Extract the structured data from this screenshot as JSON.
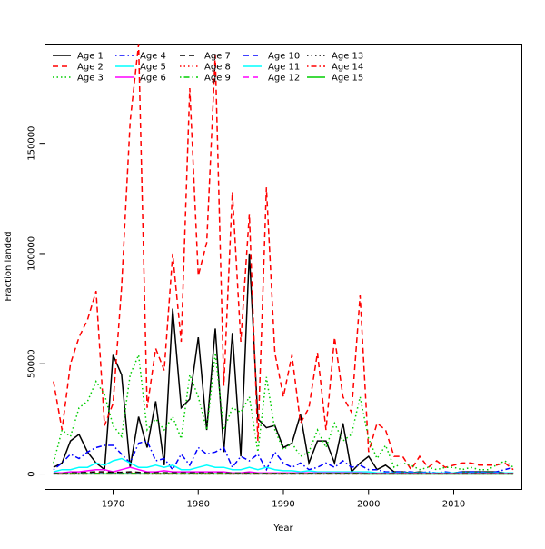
{
  "chart_data": {
    "type": "line",
    "title": "",
    "xlabel": "Year",
    "ylabel": "Fraction landed",
    "xlim": [
      1962,
      2018
    ],
    "ylim": [
      -7000,
      195000
    ],
    "x_ticks": [
      1970,
      1980,
      1990,
      2000,
      2010
    ],
    "y_ticks": [
      0,
      50000,
      100000,
      150000
    ],
    "legend_placement": "top-left",
    "grid": false,
    "x": [
      1963,
      1964,
      1965,
      1966,
      1967,
      1968,
      1969,
      1970,
      1971,
      1972,
      1973,
      1974,
      1975,
      1976,
      1977,
      1978,
      1979,
      1980,
      1981,
      1982,
      1983,
      1984,
      1985,
      1986,
      1987,
      1988,
      1989,
      1990,
      1991,
      1992,
      1993,
      1994,
      1995,
      1996,
      1997,
      1998,
      1999,
      2000,
      2001,
      2002,
      2003,
      2004,
      2005,
      2006,
      2007,
      2008,
      2009,
      2010,
      2011,
      2012,
      2013,
      2014,
      2015,
      2016,
      2017
    ],
    "series": [
      {
        "name": "Age 1",
        "color": "#000000",
        "dash": "solid",
        "values": [
          3000,
          5000,
          15000,
          18000,
          10000,
          5000,
          2000,
          54000,
          45000,
          3000,
          26000,
          12000,
          33000,
          4000,
          75000,
          30000,
          34000,
          62000,
          20000,
          66000,
          10000,
          64000,
          8000,
          100000,
          25000,
          21000,
          22000,
          12000,
          14000,
          27000,
          5000,
          15000,
          15000,
          5000,
          23000,
          1000,
          5000,
          8000,
          2000,
          4000,
          1000,
          1000,
          500,
          1000,
          500,
          500,
          500,
          500,
          1000,
          1000,
          1000,
          1000,
          1000,
          500,
          500
        ]
      },
      {
        "name": "Age 2",
        "color": "#ff0000",
        "dash": "dashed",
        "values": [
          42000,
          20000,
          50000,
          62000,
          70000,
          83000,
          22000,
          32000,
          85000,
          160000,
          195000,
          30000,
          57000,
          47000,
          100000,
          60000,
          175000,
          90000,
          105000,
          190000,
          40000,
          128000,
          60000,
          118000,
          15000,
          130000,
          55000,
          35000,
          54000,
          23000,
          30000,
          55000,
          20000,
          62000,
          35000,
          28000,
          81000,
          10000,
          23000,
          20000,
          8000,
          8000,
          2000,
          8000,
          3000,
          6000,
          3000,
          4000,
          5000,
          5000,
          4000,
          4000,
          4000,
          5000,
          2000
        ]
      },
      {
        "name": "Age 3",
        "color": "#00cd00",
        "dash": "dotted",
        "values": [
          5000,
          20000,
          17000,
          30000,
          33000,
          42000,
          36000,
          22000,
          17000,
          45000,
          54000,
          20000,
          25000,
          20000,
          26000,
          16000,
          45000,
          35000,
          20000,
          55000,
          20000,
          30000,
          28000,
          35000,
          10000,
          44000,
          20000,
          11000,
          14000,
          8000,
          10000,
          20000,
          12000,
          23000,
          15000,
          18000,
          35000,
          16000,
          7000,
          13000,
          3000,
          5000,
          4000,
          2000,
          3000,
          2000,
          3000,
          3000,
          2000,
          3000,
          2000,
          2000,
          4000,
          6000,
          3000
        ]
      },
      {
        "name": "Age 4",
        "color": "#0000ff",
        "dash": "dashdot",
        "values": [
          2000,
          5000,
          9000,
          7000,
          10000,
          12000,
          13000,
          13000,
          9000,
          5000,
          14000,
          15000,
          6000,
          7000,
          2000,
          9000,
          4000,
          12000,
          9000,
          10000,
          12000,
          3000,
          8000,
          6000,
          9000,
          2000,
          10000,
          5000,
          3000,
          5000,
          2000,
          3000,
          5000,
          3000,
          6000,
          3000,
          4000,
          2000,
          2000,
          1000,
          1000,
          1000,
          1000,
          500,
          1000,
          500,
          1000,
          500,
          1000,
          1000,
          1000,
          500,
          1000,
          2000,
          3000
        ]
      },
      {
        "name": "Age 5",
        "color": "#00ffff",
        "dash": "solid",
        "values": [
          1000,
          2000,
          2000,
          3000,
          3000,
          5000,
          4000,
          6000,
          7000,
          5000,
          3000,
          3000,
          4000,
          3000,
          4000,
          2000,
          2000,
          3000,
          4000,
          3000,
          3000,
          2000,
          2000,
          3000,
          2000,
          3000,
          2000,
          1500,
          1500,
          1000,
          1500,
          1000,
          1000,
          1000,
          1000,
          1000,
          1000,
          1000,
          500,
          500,
          500,
          500,
          500,
          500,
          500,
          500,
          500,
          500,
          500,
          500,
          500,
          500,
          500,
          500,
          500
        ]
      },
      {
        "name": "Age 6",
        "color": "#ff00ff",
        "dash": "solid",
        "values": [
          500,
          500,
          1000,
          1000,
          1500,
          2000,
          2000,
          1000,
          2000,
          3000,
          2000,
          1000,
          1000,
          1500,
          1000,
          1000,
          1000,
          1000,
          1000,
          1000,
          1000,
          500,
          500,
          1000,
          500,
          500,
          500,
          500,
          500,
          500,
          500,
          500,
          500,
          500,
          500,
          500,
          500,
          300,
          300,
          300,
          300,
          300,
          300,
          300,
          300,
          300,
          300,
          300,
          300,
          300,
          300,
          300,
          300,
          300,
          300
        ]
      },
      {
        "name": "Age 7",
        "color": "#000000",
        "dash": "dashed",
        "values": [
          300,
          300,
          500,
          500,
          800,
          1000,
          1000,
          800,
          800,
          1000,
          800,
          600,
          600,
          600,
          500,
          500,
          500,
          500,
          500,
          500,
          500,
          400,
          400,
          400,
          300,
          300,
          300,
          300,
          300,
          300,
          300,
          300,
          300,
          300,
          300,
          300,
          300,
          200,
          200,
          200,
          200,
          200,
          200,
          200,
          200,
          200,
          200,
          200,
          200,
          200,
          200,
          200,
          200,
          200,
          200
        ]
      },
      {
        "name": "Age 8",
        "color": "#ff0000",
        "dash": "dotted",
        "values": [
          200,
          200,
          300,
          300,
          400,
          500,
          500,
          400,
          400,
          500,
          400,
          300,
          300,
          300,
          300,
          300,
          300,
          300,
          300,
          300,
          300,
          200,
          200,
          200,
          200,
          200,
          200,
          200,
          200,
          200,
          200,
          200,
          200,
          200,
          200,
          200,
          200,
          100,
          100,
          100,
          100,
          100,
          100,
          100,
          100,
          100,
          100,
          100,
          100,
          100,
          100,
          100,
          100,
          100,
          100
        ]
      },
      {
        "name": "Age 9",
        "color": "#00cd00",
        "dash": "dashdot",
        "values": [
          150,
          150,
          200,
          200,
          300,
          300,
          300,
          300,
          300,
          300,
          300,
          200,
          200,
          200,
          200,
          200,
          200,
          200,
          200,
          200,
          200,
          150,
          150,
          150,
          150,
          150,
          150,
          150,
          150,
          150,
          150,
          150,
          150,
          150,
          150,
          150,
          150,
          100,
          100,
          100,
          100,
          100,
          100,
          100,
          100,
          100,
          100,
          100,
          100,
          100,
          100,
          100,
          100,
          100,
          100
        ]
      },
      {
        "name": "Age 10",
        "color": "#0000ff",
        "dash": "dashed",
        "values": [
          100,
          100,
          150,
          150,
          200,
          200,
          200,
          200,
          200,
          200,
          200,
          150,
          150,
          150,
          150,
          150,
          150,
          150,
          150,
          150,
          150,
          100,
          100,
          100,
          100,
          100,
          100,
          100,
          100,
          100,
          100,
          100,
          100,
          100,
          100,
          100,
          100,
          80,
          80,
          80,
          80,
          80,
          80,
          80,
          80,
          80,
          80,
          80,
          80,
          80,
          80,
          80,
          80,
          80,
          80
        ]
      },
      {
        "name": "Age 11",
        "color": "#00ffff",
        "dash": "solid",
        "values": [
          80,
          80,
          100,
          100,
          150,
          150,
          150,
          150,
          150,
          150,
          150,
          100,
          100,
          100,
          100,
          100,
          100,
          100,
          100,
          100,
          100,
          80,
          80,
          80,
          80,
          80,
          80,
          80,
          80,
          80,
          80,
          80,
          80,
          80,
          80,
          80,
          80,
          60,
          60,
          60,
          60,
          60,
          60,
          60,
          60,
          60,
          60,
          60,
          60,
          60,
          60,
          60,
          60,
          60,
          60
        ]
      },
      {
        "name": "Age 12",
        "color": "#ff00ff",
        "dash": "dashed",
        "values": [
          60,
          60,
          80,
          80,
          100,
          100,
          100,
          100,
          100,
          100,
          100,
          80,
          80,
          80,
          80,
          80,
          80,
          80,
          80,
          80,
          80,
          60,
          60,
          60,
          60,
          60,
          60,
          60,
          60,
          60,
          60,
          60,
          60,
          60,
          60,
          60,
          60,
          50,
          50,
          50,
          50,
          50,
          50,
          50,
          50,
          50,
          50,
          50,
          50,
          50,
          50,
          50,
          50,
          50,
          50
        ]
      },
      {
        "name": "Age 13",
        "color": "#000000",
        "dash": "dotted",
        "values": [
          50,
          50,
          60,
          60,
          80,
          80,
          80,
          80,
          80,
          80,
          80,
          60,
          60,
          60,
          60,
          60,
          60,
          60,
          60,
          60,
          60,
          50,
          50,
          50,
          50,
          50,
          50,
          50,
          50,
          50,
          50,
          50,
          50,
          50,
          50,
          50,
          50,
          40,
          40,
          40,
          40,
          40,
          40,
          40,
          40,
          40,
          40,
          40,
          40,
          40,
          40,
          40,
          40,
          40,
          40
        ]
      },
      {
        "name": "Age 14",
        "color": "#ff0000",
        "dash": "dashdot",
        "values": [
          40,
          40,
          50,
          50,
          60,
          60,
          60,
          60,
          60,
          60,
          60,
          50,
          50,
          50,
          50,
          50,
          50,
          50,
          50,
          50,
          50,
          40,
          40,
          40,
          40,
          40,
          40,
          40,
          40,
          40,
          40,
          40,
          40,
          40,
          40,
          40,
          40,
          30,
          30,
          30,
          30,
          30,
          30,
          30,
          30,
          30,
          30,
          30,
          30,
          30,
          30,
          30,
          30,
          30,
          30
        ]
      },
      {
        "name": "Age 15",
        "color": "#00cd00",
        "dash": "solid",
        "values": [
          30,
          30,
          40,
          40,
          50,
          50,
          50,
          50,
          50,
          50,
          50,
          40,
          40,
          40,
          40,
          40,
          40,
          40,
          40,
          40,
          40,
          30,
          30,
          30,
          30,
          30,
          30,
          30,
          30,
          30,
          30,
          30,
          30,
          30,
          30,
          30,
          30,
          20,
          20,
          20,
          20,
          20,
          20,
          20,
          20,
          20,
          20,
          20,
          20,
          20,
          20,
          20,
          20,
          20,
          20
        ]
      }
    ]
  }
}
